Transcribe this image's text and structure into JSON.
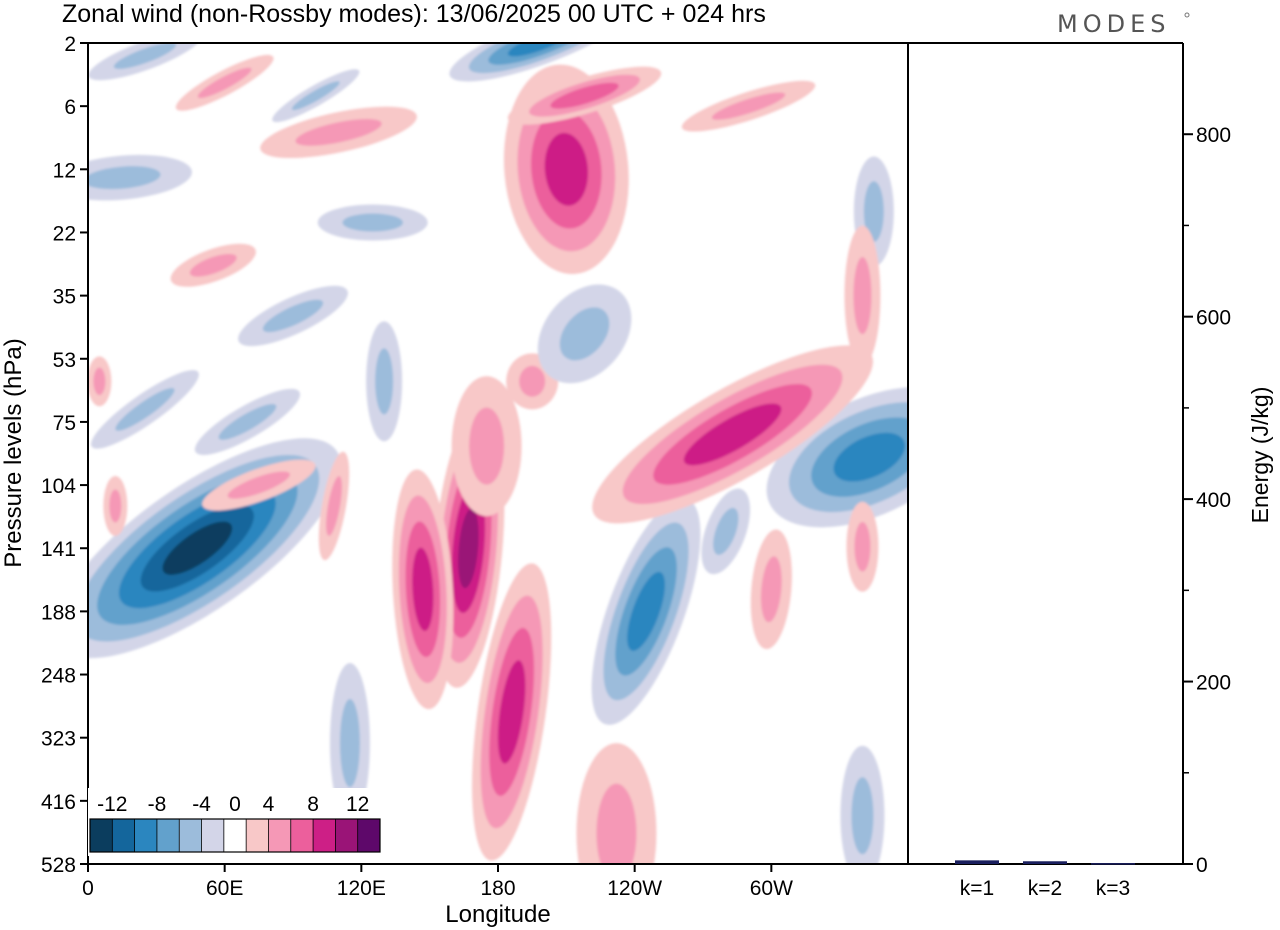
{
  "title": "Zonal wind (non-Rossby modes):  13/06/2025  00 UTC  + 024 hrs",
  "brand": "MODES",
  "chart_data": [
    {
      "type": "heatmap",
      "xlabel": "Longitude",
      "ylabel": "Pressure levels (hPa)",
      "x_ticks": [
        "0",
        "60E",
        "120E",
        "180",
        "120W",
        "60W"
      ],
      "x_tick_longitudes": [
        0,
        60,
        120,
        180,
        240,
        300
      ],
      "xlim": [
        0,
        360
      ],
      "y_ticks": [
        "2",
        "6",
        "12",
        "22",
        "35",
        "53",
        "75",
        "104",
        "141",
        "188",
        "248",
        "323",
        "416",
        "528"
      ],
      "y_scale": "pressure levels (top 2 hPa, bottom 528 hPa)",
      "colorbar": {
        "labels": [
          "-12",
          "-8",
          "-4",
          "0",
          "4",
          "8",
          "12"
        ],
        "levels": [
          -14,
          -12,
          -10,
          -8,
          -6,
          -4,
          -2,
          2,
          4,
          6,
          8,
          10,
          12,
          14
        ],
        "colors": [
          "#0b3d5e",
          "#14669c",
          "#2b86bf",
          "#62a1cc",
          "#9cbcdb",
          "#d3d5e8",
          "#ffffff",
          "#f8c8c8",
          "#f598b6",
          "#ec5f9c",
          "#cd1f86",
          "#9a1477",
          "#5e086a"
        ],
        "placement": "bottom-left inset"
      },
      "features": [
        {
          "sign": "negative",
          "peak": -12,
          "lon": 48,
          "level": 141
        },
        {
          "sign": "negative",
          "peak": -8,
          "lon": 245,
          "level": 188
        },
        {
          "sign": "negative",
          "peak": -8,
          "lon": 343,
          "level": 90
        },
        {
          "sign": "negative",
          "peak": -8,
          "lon": 198,
          "level": 2
        },
        {
          "sign": "positive",
          "peak": 10,
          "lon": 167,
          "level": 141
        },
        {
          "sign": "positive",
          "peak": 8,
          "lon": 147,
          "level": 170
        },
        {
          "sign": "positive",
          "peak": 8,
          "lon": 186,
          "level": 290
        },
        {
          "sign": "positive",
          "peak": 8,
          "lon": 210,
          "level": 12
        },
        {
          "sign": "positive",
          "peak": 8,
          "lon": 283,
          "level": 80
        },
        {
          "sign": "positive",
          "peak": 6,
          "lon": 218,
          "level": 5
        }
      ]
    },
    {
      "type": "bar",
      "ylabel": "Energy (J/kg)",
      "ylim": [
        0,
        900
      ],
      "y_ticks": [
        "0",
        "200",
        "400",
        "600",
        "800"
      ],
      "categories": [
        "k=1",
        "k=2",
        "k=3"
      ],
      "values": [
        4,
        3,
        1
      ],
      "color": "#1a1f5e"
    }
  ]
}
